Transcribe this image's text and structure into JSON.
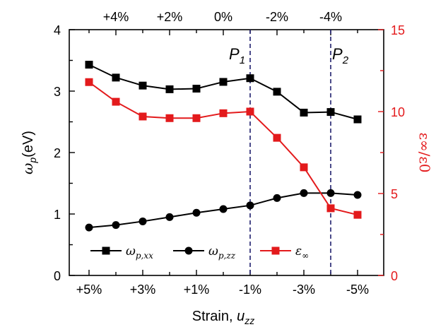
{
  "chart_data": {
    "type": "line",
    "categories": [
      "+5%",
      "+4%",
      "+3%",
      "+2%",
      "+1%",
      "0%",
      "-1%",
      "-2%",
      "-3%",
      "-4%",
      "-5%"
    ],
    "bottom_ticks": [
      "+5%",
      "+3%",
      "+1%",
      "-1%",
      "-3%",
      "-5%"
    ],
    "top_ticks": [
      "+4%",
      "+2%",
      "0%",
      "-2%",
      "-4%"
    ],
    "xlabel_main": "Strain, ",
    "xlabel_var": "u",
    "xlabel_sub": "zz",
    "ylabel_main": "ω",
    "ylabel_sub": "p",
    "ylabel_unit": "(eV)",
    "y2label": "ε∞/ε0",
    "ylim": [
      0,
      4
    ],
    "yticks": [
      "0",
      "1",
      "2",
      "3",
      "4"
    ],
    "y2lim": [
      0,
      15
    ],
    "y2ticks": [
      "0",
      "5",
      "10",
      "15"
    ],
    "series": [
      {
        "name": "ωp,xx",
        "axis": "left",
        "marker": "square",
        "color": "#000000",
        "values": [
          3.43,
          3.22,
          3.09,
          3.03,
          3.04,
          3.15,
          3.21,
          2.99,
          2.65,
          2.66,
          2.54
        ]
      },
      {
        "name": "ωp,zz",
        "axis": "left",
        "marker": "circle",
        "color": "#000000",
        "values": [
          0.78,
          0.82,
          0.88,
          0.95,
          1.02,
          1.08,
          1.14,
          1.26,
          1.34,
          1.34,
          1.31
        ]
      },
      {
        "name": "ε∞",
        "axis": "right",
        "marker": "square",
        "color": "#e31a1c",
        "values": [
          11.8,
          10.6,
          9.7,
          9.6,
          9.6,
          9.9,
          10.0,
          8.4,
          6.6,
          4.1,
          3.7
        ]
      }
    ],
    "vertical_markers": [
      {
        "label": "P",
        "sub": "1",
        "category": "-1%"
      },
      {
        "label": "P",
        "sub": "2",
        "category": "-4%"
      }
    ],
    "legend": [
      {
        "symbol": "ω",
        "sub": "p,xx"
      },
      {
        "symbol": "ω",
        "sub": "p,zz"
      },
      {
        "symbol": "ε",
        "sub": "∞"
      }
    ],
    "legend_position": "bottom",
    "grid": false,
    "colors": {
      "left": "#000000",
      "right": "#e31a1c",
      "markers": "#1f1f6e"
    }
  }
}
